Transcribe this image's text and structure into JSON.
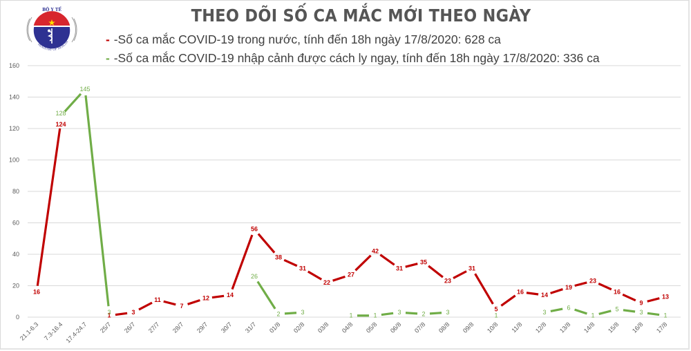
{
  "header": {
    "title": "THEO DÕI SỐ CA MẮC MỚI THEO NGÀY",
    "logo": {
      "top_text": "BỘ Y TẾ",
      "bottom_text": "MINISTRY OF HEALTH",
      "icon": "caduceus-icon"
    }
  },
  "legend": [
    {
      "marker": "- ",
      "label": "-Số ca mắc COVID-19 trong nước, tính đến 18h ngày 17/8/2020: 628 ca",
      "color": "#c00000"
    },
    {
      "marker": "- ",
      "label": "-Số ca mắc COVID-19 nhập cảnh được cách ly ngay, tính đến 18h ngày 17/8/2020: 336 ca",
      "color": "#70ad47"
    }
  ],
  "colors": {
    "domestic": "#c00000",
    "imported": "#70ad47",
    "grid": "#d9d9d9",
    "axis_text": "#595959",
    "title": "#555555"
  },
  "chart_data": {
    "type": "line",
    "title": "THEO DÕI SỐ CA MẮC MỚI THEO NGÀY",
    "xlabel": "",
    "ylabel": "",
    "ylim": [
      0,
      160
    ],
    "yticks": [
      0,
      20,
      40,
      60,
      80,
      100,
      120,
      140,
      160
    ],
    "grid": true,
    "legend_position": "top",
    "categories": [
      "21.1-6.3",
      "7.3-16.4",
      "17.4-24.7",
      "25/7",
      "26/7",
      "27/7",
      "28/7",
      "29/7",
      "30/7",
      "31/7",
      "01/8",
      "02/8",
      "03/8",
      "04/8",
      "05/8",
      "06/8",
      "07/8",
      "08/8",
      "09/8",
      "10/8",
      "11/8",
      "12/8",
      "13/8",
      "14/8",
      "15/8",
      "16/8",
      "17/8"
    ],
    "series": [
      {
        "name": "Số ca mắc COVID-19 trong nước, tính đến 18h ngày 17/8/2020: 628 ca",
        "color": "#c00000",
        "values": [
          16,
          124,
          null,
          1,
          3,
          11,
          7,
          12,
          14,
          56,
          38,
          31,
          22,
          27,
          42,
          31,
          35,
          23,
          31,
          5,
          16,
          14,
          19,
          23,
          16,
          9,
          13
        ]
      },
      {
        "name": "Số ca mắc COVID-19 nhập cảnh được cách ly ngay, tính đến 18h ngày 17/8/2020: 336 ca",
        "color": "#70ad47",
        "values": [
          null,
          128,
          145,
          3,
          null,
          null,
          null,
          null,
          null,
          26,
          2,
          3,
          null,
          1,
          1,
          3,
          2,
          3,
          null,
          1,
          null,
          3,
          6,
          1,
          5,
          3,
          1
        ]
      }
    ]
  }
}
